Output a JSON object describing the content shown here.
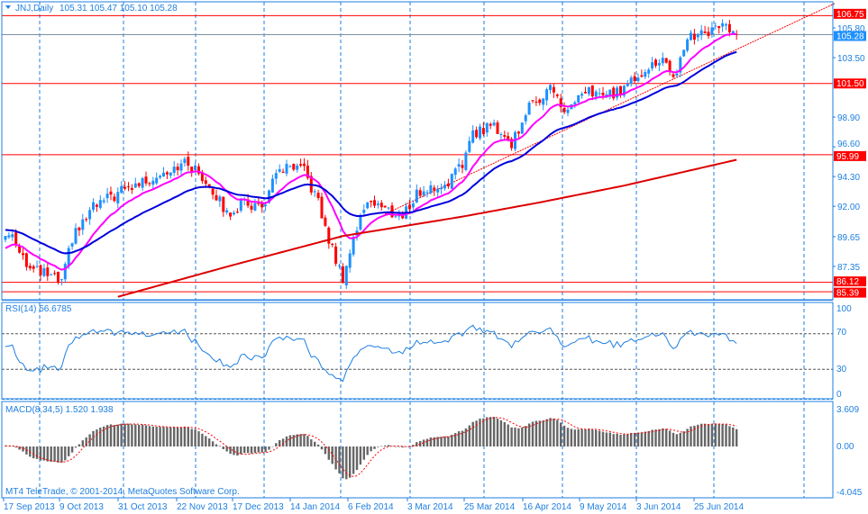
{
  "header": {
    "symbol": "JNJ,Daily",
    "ohlc": "105.31 105.47 105.10 105.28"
  },
  "copyright": "MT4 TeleTrade, © 2001-2014, MetaQuotes Software Corp.",
  "colors": {
    "bull": "#1e90ff",
    "bear": "#ff0000",
    "ma_fast": "#ff00ff",
    "ma_mid": "#0000dd",
    "ma_slow": "#dd0000",
    "axis": "#1e7fe0",
    "grid": "#1e7fe0",
    "rsi": "#1e7fe0",
    "macd_hist": "#666666",
    "macd_signal": "#ff0000"
  },
  "chart_data": [
    {
      "type": "candlestick",
      "title": "JNJ,Daily",
      "bars": 209,
      "close_anchors": [
        [
          0,
          89.7
        ],
        [
          2,
          89.9
        ],
        [
          7,
          87.1
        ],
        [
          12,
          86.7
        ],
        [
          16,
          86.0
        ],
        [
          19,
          89.5
        ],
        [
          25,
          91.9
        ],
        [
          32,
          93.0
        ],
        [
          40,
          94.0
        ],
        [
          48,
          95.1
        ],
        [
          52,
          95.3
        ],
        [
          58,
          93.7
        ],
        [
          63,
          91.4
        ],
        [
          68,
          92.3
        ],
        [
          73,
          91.9
        ],
        [
          78,
          94.9
        ],
        [
          85,
          94.7
        ],
        [
          89,
          92.3
        ],
        [
          91,
          90.2
        ],
        [
          95,
          87.1
        ],
        [
          96,
          86.5
        ],
        [
          99,
          89.5
        ],
        [
          103,
          92.6
        ],
        [
          109,
          91.6
        ],
        [
          113,
          91.2
        ],
        [
          117,
          93.0
        ],
        [
          125,
          93.7
        ],
        [
          130,
          95.1
        ],
        [
          132,
          97.5
        ],
        [
          139,
          98.3
        ],
        [
          144,
          96.8
        ],
        [
          148,
          99.3
        ],
        [
          155,
          101.3
        ],
        [
          159,
          99.3
        ],
        [
          166,
          100.8
        ],
        [
          173,
          100.6
        ],
        [
          178,
          101.7
        ],
        [
          182,
          102.7
        ],
        [
          187,
          103.2
        ],
        [
          191,
          102.0
        ],
        [
          194,
          105.2
        ],
        [
          199,
          105.3
        ],
        [
          204,
          106.2
        ],
        [
          208,
          105.28
        ]
      ],
      "ma_slow_anchors": [
        [
          32,
          85.0
        ],
        [
          64,
          87.4
        ],
        [
          96,
          89.7
        ],
        [
          130,
          91.2
        ],
        [
          152,
          92.3
        ],
        [
          176,
          93.6
        ],
        [
          208,
          95.6
        ]
      ],
      "ylim": [
        84.9,
        107.95
      ],
      "y_ticks": [
        "105.80",
        "103.50",
        "98.90",
        "96.60",
        "94.30",
        "92.00",
        "89.65",
        "87.35"
      ],
      "y_tick_values": [
        105.8,
        103.5,
        98.9,
        96.6,
        94.3,
        92.0,
        89.65,
        87.35
      ],
      "levels": [
        {
          "label": "106.75",
          "value": 106.75,
          "kind": "resistance"
        },
        {
          "label": "101.50",
          "value": 101.5,
          "kind": "resistance"
        },
        {
          "label": "95.99",
          "value": 95.99,
          "kind": "support"
        },
        {
          "label": "86.12",
          "value": 86.12,
          "kind": "support"
        },
        {
          "label": "85.39",
          "value": 85.39,
          "kind": "support"
        }
      ],
      "bid": {
        "label": "105.28",
        "value": 105.28
      },
      "trendline": [
        [
          108,
          91.4
        ],
        [
          236,
          107.7
        ]
      ],
      "x_labels": [
        "17 Sep 2013",
        "9 Oct 2013",
        "31 Oct 2013",
        "22 Nov 2013",
        "17 Dec 2013",
        "14 Jan 2014",
        "6 Feb 2014",
        "3 Mar 2014",
        "25 Mar 2014",
        "16 Apr 2014",
        "9 May 2014",
        "3 Jun 2014",
        "25 Jun 2014"
      ]
    },
    {
      "type": "line",
      "title": "RSI(14) 56.6785",
      "ylim": [
        0,
        100
      ],
      "y_ticks": [
        "100",
        "70",
        "30",
        "0"
      ],
      "levels": [
        70,
        30
      ]
    },
    {
      "type": "bar",
      "title": "MACD(8,34,5) 1.520 1.938",
      "ylim": [
        -4.045,
        3.609
      ],
      "y_ticks": [
        "3.609",
        "0.00",
        "-4.045"
      ]
    }
  ]
}
